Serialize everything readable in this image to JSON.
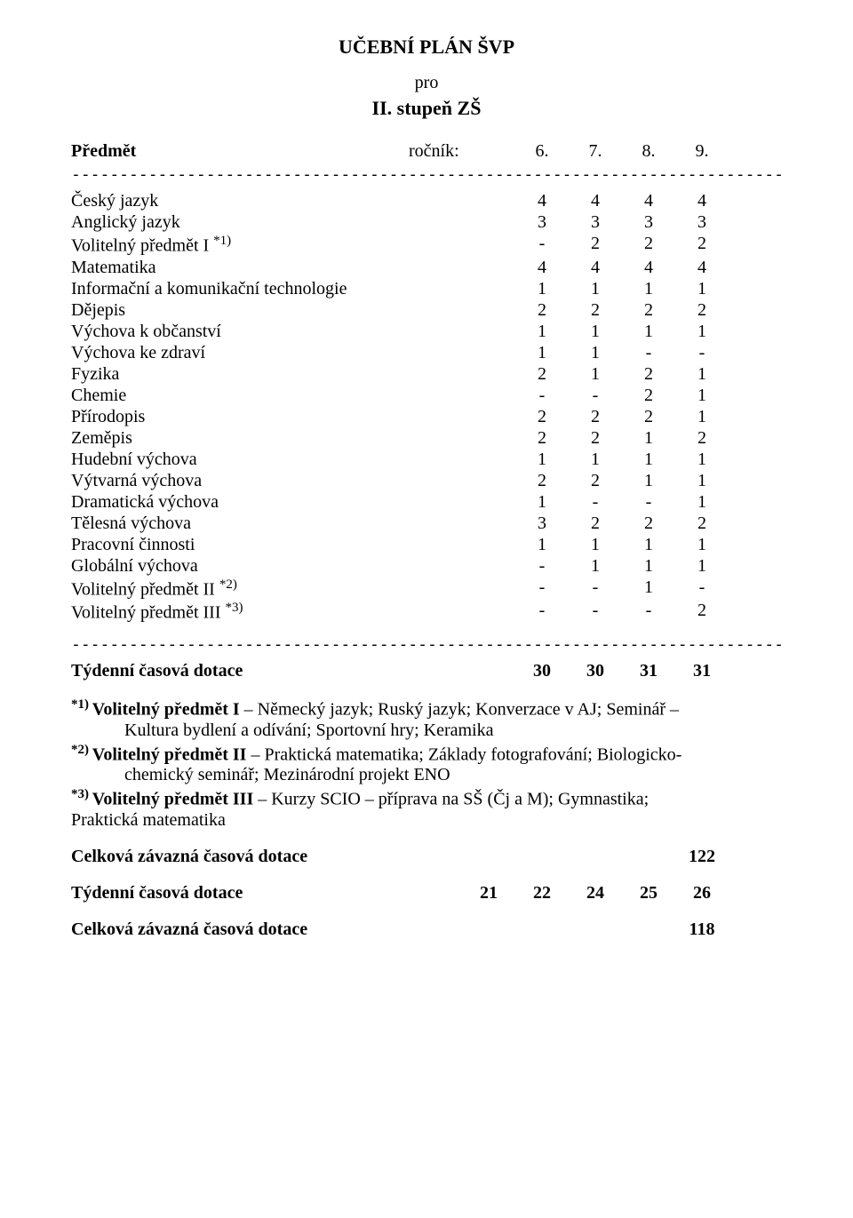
{
  "title": "UČEBNÍ  PLÁN  ŠVP",
  "subtitle": "pro",
  "subtitle2": "II. stupeň ZŠ",
  "header": {
    "subject": "Předmět",
    "rocnik": "ročník:",
    "cols": [
      "6.",
      "7.",
      "8.",
      "9."
    ]
  },
  "divider": "----------------------------------------------------------------------------------------------------------",
  "rows": [
    {
      "label": "Český jazyk",
      "vals": [
        "4",
        "4",
        "4",
        "4"
      ]
    },
    {
      "label": "Anglický jazyk",
      "vals": [
        "3",
        "3",
        "3",
        "3"
      ]
    },
    {
      "label": "Volitelný předmět I ",
      "sup": "*1)",
      "vals": [
        "-",
        "2",
        "2",
        "2"
      ]
    },
    {
      "label": "Matematika",
      "vals": [
        "4",
        "4",
        "4",
        "4"
      ]
    },
    {
      "label": "Informační a komunikační technologie",
      "vals": [
        "1",
        "1",
        "1",
        "1"
      ]
    },
    {
      "label": "Dějepis",
      "vals": [
        "2",
        "2",
        "2",
        "2"
      ]
    },
    {
      "label": "Výchova k občanství",
      "vals": [
        "1",
        "1",
        "1",
        "1"
      ]
    },
    {
      "label": "Výchova ke zdraví",
      "vals": [
        "1",
        "1",
        "-",
        "-"
      ]
    },
    {
      "label": "Fyzika",
      "vals": [
        "2",
        "1",
        "2",
        "1"
      ]
    },
    {
      "label": "Chemie",
      "vals": [
        "-",
        "-",
        "2",
        "1"
      ]
    },
    {
      "label": "Přírodopis",
      "vals": [
        "2",
        "2",
        "2",
        "1"
      ]
    },
    {
      "label": "Zeměpis",
      "vals": [
        "2",
        "2",
        "1",
        "2"
      ]
    },
    {
      "label": "Hudební výchova",
      "vals": [
        "1",
        "1",
        "1",
        "1"
      ]
    },
    {
      "label": "Výtvarná výchova",
      "vals": [
        "2",
        "2",
        "1",
        "1"
      ]
    },
    {
      "label": "Dramatická výchova",
      "vals": [
        "1",
        "-",
        "-",
        "1"
      ]
    },
    {
      "label": "Tělesná výchova",
      "vals": [
        "3",
        "2",
        "2",
        "2"
      ]
    },
    {
      "label": "Pracovní činnosti",
      "vals": [
        "1",
        "1",
        "1",
        "1"
      ]
    },
    {
      "label": "Globální výchova",
      "vals": [
        "-",
        "1",
        "1",
        "1"
      ]
    },
    {
      "label": "Volitelný předmět II ",
      "sup": "*2)",
      "vals": [
        "-",
        "-",
        "1",
        "-"
      ]
    },
    {
      "label": "Volitelný předmět III ",
      "sup": "*3)",
      "vals": [
        "-",
        "-",
        "-",
        "2"
      ]
    }
  ],
  "divider2": "---------------------------------------------------------------------------------------------------------",
  "total": {
    "label": "Týdenní časová dotace",
    "vals": [
      "30",
      "30",
      "31",
      "31"
    ]
  },
  "footnotes": {
    "f1": {
      "sup": "*1) ",
      "boldHead": "Volitelný předmět I",
      "tail": " – Německý jazyk; Ruský jazyk; Konverzace v AJ; Seminář –",
      "line2": "Kultura bydlení a odívání; Sportovní hry; Keramika"
    },
    "f2": {
      "sup": "*2) ",
      "boldHead": "Volitelný předmět II",
      "tail": " – Praktická matematika; Základy fotografování; Biologicko-",
      "line2": "chemický seminář; Mezinárodní projekt ENO"
    },
    "f3": {
      "sup": "*3) ",
      "boldHead": "Volitelný předmět III",
      "tail": " – Kurzy SCIO – příprava na SŠ (Čj a M); Gymnastika;",
      "line2": "Praktická matematika",
      "line2indent": false
    }
  },
  "celkova1": {
    "label": "Celková závazná časová dotace",
    "val": "122"
  },
  "tyden2": {
    "label": "Týdenní časová dotace",
    "vals": [
      "21",
      "22",
      "24",
      "25",
      "26"
    ]
  },
  "celkova2": {
    "label": "Celková závazná časová dotace",
    "val": "118"
  }
}
